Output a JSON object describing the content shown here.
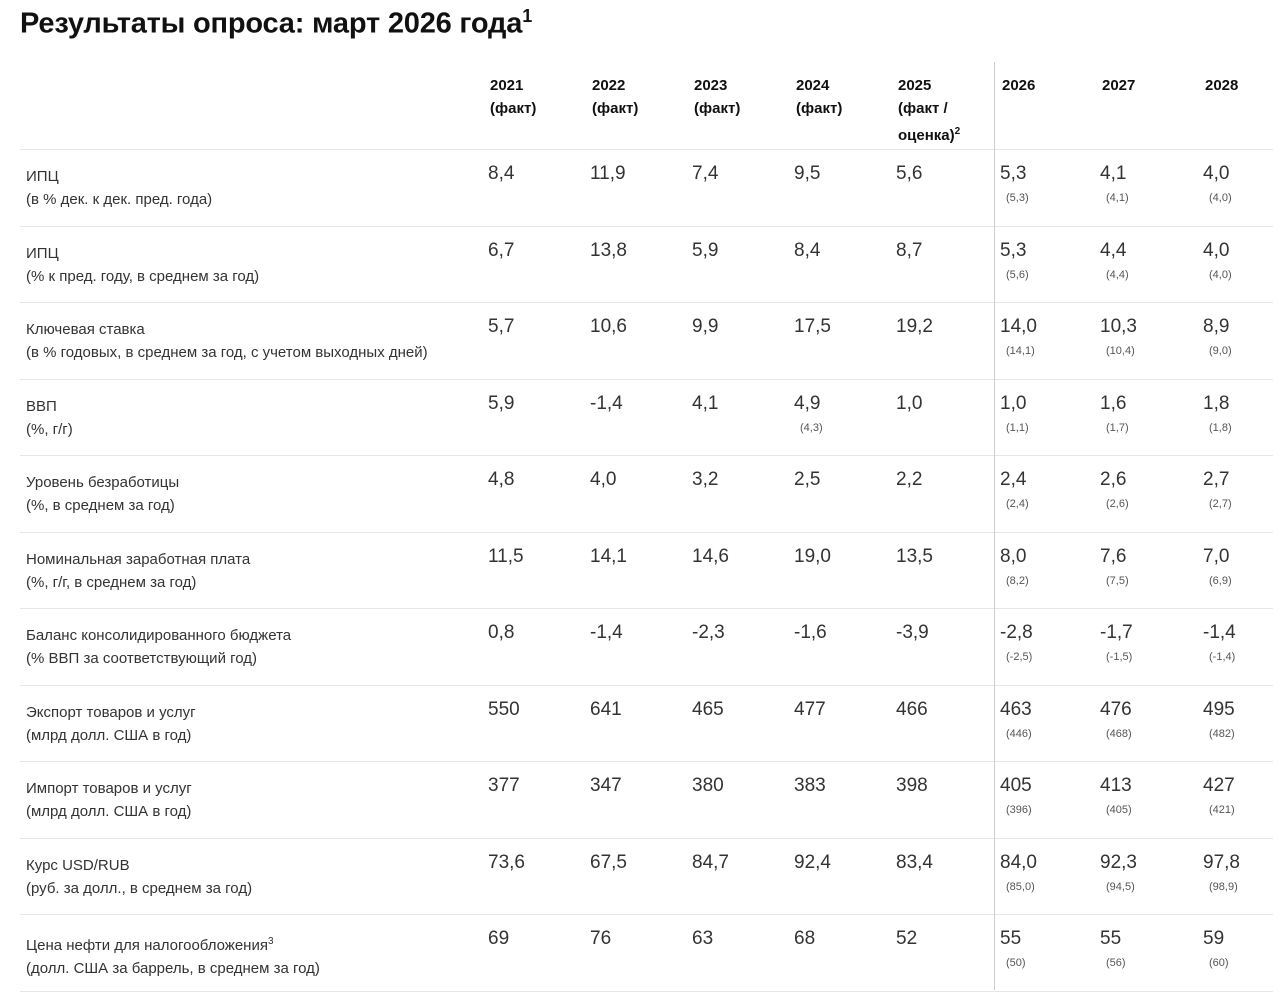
{
  "title": "Результаты опроса: март 2026 года",
  "title_footnote": "1",
  "columns": [
    {
      "line1": "2021",
      "line2": "(факт)"
    },
    {
      "line1": "2022",
      "line2": "(факт)"
    },
    {
      "line1": "2023",
      "line2": "(факт)"
    },
    {
      "line1": "2024",
      "line2": "(факт)"
    },
    {
      "line1": "2025",
      "line2": "(факт /",
      "line3": "оценка)",
      "footnote": "2"
    },
    {
      "line1": "2026"
    },
    {
      "line1": "2027"
    },
    {
      "line1": "2028"
    }
  ],
  "rows": [
    {
      "name": "ИПЦ",
      "unit": "(в % дек. к дек. пред. года)",
      "values": [
        "8,4",
        "11,9",
        "7,4",
        "9,5",
        "5,6",
        "5,3",
        "4,1",
        "4,0"
      ],
      "prev": [
        null,
        null,
        null,
        null,
        null,
        "(5,3)",
        "(4,1)",
        "(4,0)"
      ]
    },
    {
      "name": "ИПЦ",
      "unit": "(% к пред. году, в среднем за год)",
      "values": [
        "6,7",
        "13,8",
        "5,9",
        "8,4",
        "8,7",
        "5,3",
        "4,4",
        "4,0"
      ],
      "prev": [
        null,
        null,
        null,
        null,
        null,
        "(5,6)",
        "(4,4)",
        "(4,0)"
      ]
    },
    {
      "name": "Ключевая ставка",
      "unit": "(в % годовых, в среднем за год, с учетом выходных дней)",
      "values": [
        "5,7",
        "10,6",
        "9,9",
        "17,5",
        "19,2",
        "14,0",
        "10,3",
        "8,9"
      ],
      "prev": [
        null,
        null,
        null,
        null,
        null,
        "(14,1)",
        "(10,4)",
        "(9,0)"
      ]
    },
    {
      "name": "ВВП",
      "unit": "(%, г/г)",
      "values": [
        "5,9",
        "-1,4",
        "4,1",
        "4,9",
        "1,0",
        "1,0",
        "1,6",
        "1,8"
      ],
      "prev": [
        null,
        null,
        null,
        "(4,3)",
        null,
        "(1,1)",
        "(1,7)",
        "(1,8)"
      ]
    },
    {
      "name": "Уровень безработицы",
      "unit": "(%, в среднем за год)",
      "values": [
        "4,8",
        "4,0",
        "3,2",
        "2,5",
        "2,2",
        "2,4",
        "2,6",
        "2,7"
      ],
      "prev": [
        null,
        null,
        null,
        null,
        null,
        "(2,4)",
        "(2,6)",
        "(2,7)"
      ]
    },
    {
      "name": "Номинальная заработная плата",
      "unit": "(%, г/г, в среднем за год)",
      "values": [
        "11,5",
        "14,1",
        "14,6",
        "19,0",
        "13,5",
        "8,0",
        "7,6",
        "7,0"
      ],
      "prev": [
        null,
        null,
        null,
        null,
        null,
        "(8,2)",
        "(7,5)",
        "(6,9)"
      ]
    },
    {
      "name": "Баланс консолидированного бюджета",
      "unit": "(% ВВП за соответствующий год)",
      "values": [
        "0,8",
        "-1,4",
        "-2,3",
        "-1,6",
        "-3,9",
        "-2,8",
        "-1,7",
        "-1,4"
      ],
      "prev": [
        null,
        null,
        null,
        null,
        null,
        "(-2,5)",
        "(-1,5)",
        "(-1,4)"
      ]
    },
    {
      "name": "Экспорт товаров и услуг",
      "unit": "(млрд долл. США в год)",
      "values": [
        "550",
        "641",
        "465",
        "477",
        "466",
        "463",
        "476",
        "495"
      ],
      "prev": [
        null,
        null,
        null,
        null,
        null,
        "(446)",
        "(468)",
        "(482)"
      ]
    },
    {
      "name": "Импорт товаров и услуг",
      "unit": "(млрд долл. США в год)",
      "values": [
        "377",
        "347",
        "380",
        "383",
        "398",
        "405",
        "413",
        "427"
      ],
      "prev": [
        null,
        null,
        null,
        null,
        null,
        "(396)",
        "(405)",
        "(421)"
      ]
    },
    {
      "name": "Курс USD/RUB",
      "unit": "(руб. за долл., в среднем за год)",
      "values": [
        "73,6",
        "67,5",
        "84,7",
        "92,4",
        "83,4",
        "84,0",
        "92,3",
        "97,8"
      ],
      "prev": [
        null,
        null,
        null,
        null,
        null,
        "(85,0)",
        "(94,5)",
        "(98,9)"
      ]
    },
    {
      "name": "Цена нефти для налогообложения",
      "footnote": "3",
      "unit": "(долл. США за баррель, в среднем за год)",
      "values": [
        "69",
        "76",
        "63",
        "68",
        "52",
        "55",
        "55",
        "59"
      ],
      "prev": [
        null,
        null,
        null,
        null,
        null,
        "(50)",
        "(56)",
        "(60)"
      ]
    }
  ]
}
